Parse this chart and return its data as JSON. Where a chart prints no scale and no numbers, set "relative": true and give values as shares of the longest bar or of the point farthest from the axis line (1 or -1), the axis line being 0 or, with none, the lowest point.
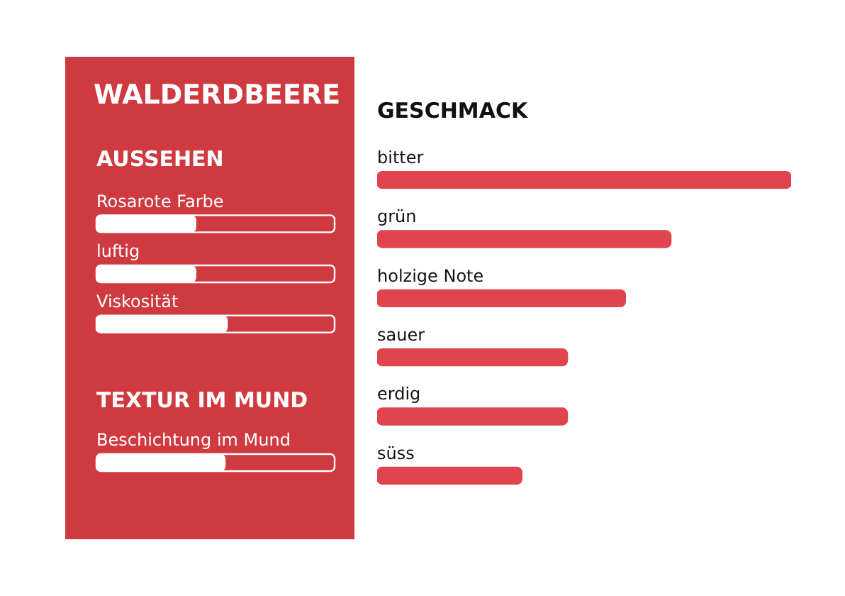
{
  "chart_data": [
    {
      "type": "other",
      "title": "WALDERDBEERE"
    },
    {
      "type": "bar",
      "orientation": "horizontal",
      "relative": true,
      "title": "AUSSEHEN",
      "categories": [
        "Rosarote Farbe",
        "luftig",
        "Viskosität"
      ],
      "values": [
        0.76,
        0.76,
        1
      ],
      "color": "#ffffff"
    },
    {
      "type": "bar",
      "orientation": "horizontal",
      "relative": true,
      "title": "TEXTUR IM MUND",
      "categories": [
        "Beschichtung im Mund"
      ],
      "values": [
        1
      ],
      "color": "#ffffff"
    },
    {
      "type": "bar",
      "orientation": "horizontal",
      "relative": true,
      "title": "GESCHMACK",
      "categories": [
        "bitter",
        "grün",
        "holzige Note",
        "sauer",
        "erdig",
        "süss"
      ],
      "values": [
        1,
        0.71,
        0.6,
        0.46,
        0.46,
        0.35
      ],
      "color": "#e0444f"
    }
  ]
}
